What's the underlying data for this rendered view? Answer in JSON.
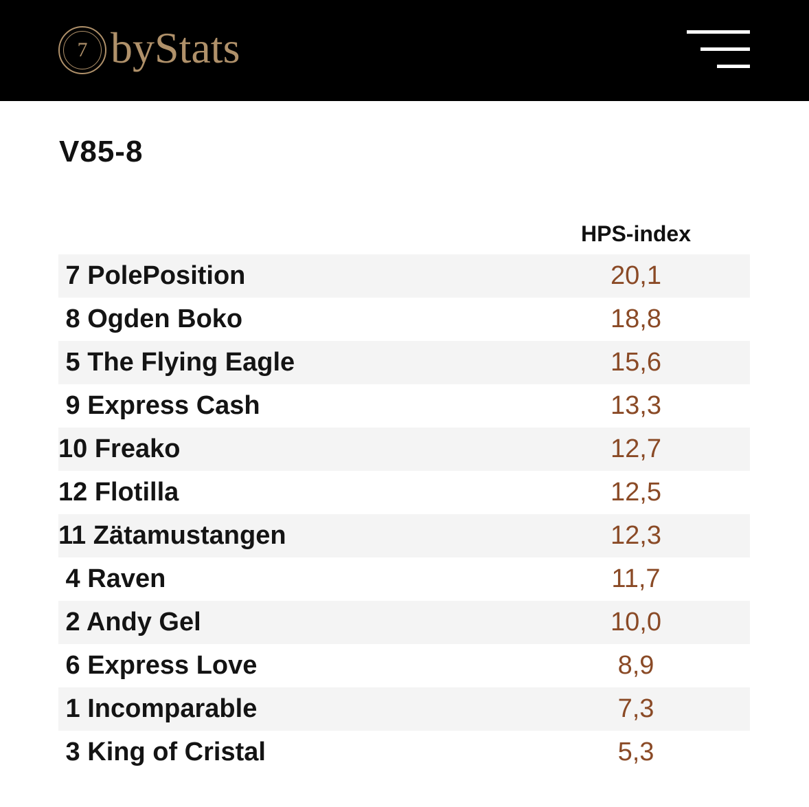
{
  "header": {
    "logo_number": "7",
    "logo_text": "byStats",
    "menu_icon": "hamburger-menu-icon"
  },
  "title": "V85-8",
  "table": {
    "column_header": "HPS-index",
    "rows": [
      {
        "horse": " 7 PolePosition",
        "value": "20,1"
      },
      {
        "horse": " 8 Ogden Boko",
        "value": "18,8"
      },
      {
        "horse": " 5 The Flying Eagle",
        "value": "15,6"
      },
      {
        "horse": " 9 Express Cash",
        "value": "13,3"
      },
      {
        "horse": "10 Freako",
        "value": "12,7"
      },
      {
        "horse": "12 Flotilla",
        "value": "12,5"
      },
      {
        "horse": "11 Zätamustangen",
        "value": "12,3"
      },
      {
        "horse": " 4 Raven",
        "value": "11,7"
      },
      {
        "horse": " 2 Andy Gel",
        "value": "10,0"
      },
      {
        "horse": " 6 Express Love",
        "value": "8,9"
      },
      {
        "horse": " 1 Incomparable",
        "value": "7,3"
      },
      {
        "horse": " 3 King of Cristal",
        "value": "5,3"
      }
    ]
  },
  "colors": {
    "header_bg": "#000000",
    "logo_gold": "#b0916a",
    "value_brown": "#8a4a26",
    "row_shade": "#f4f4f4"
  }
}
